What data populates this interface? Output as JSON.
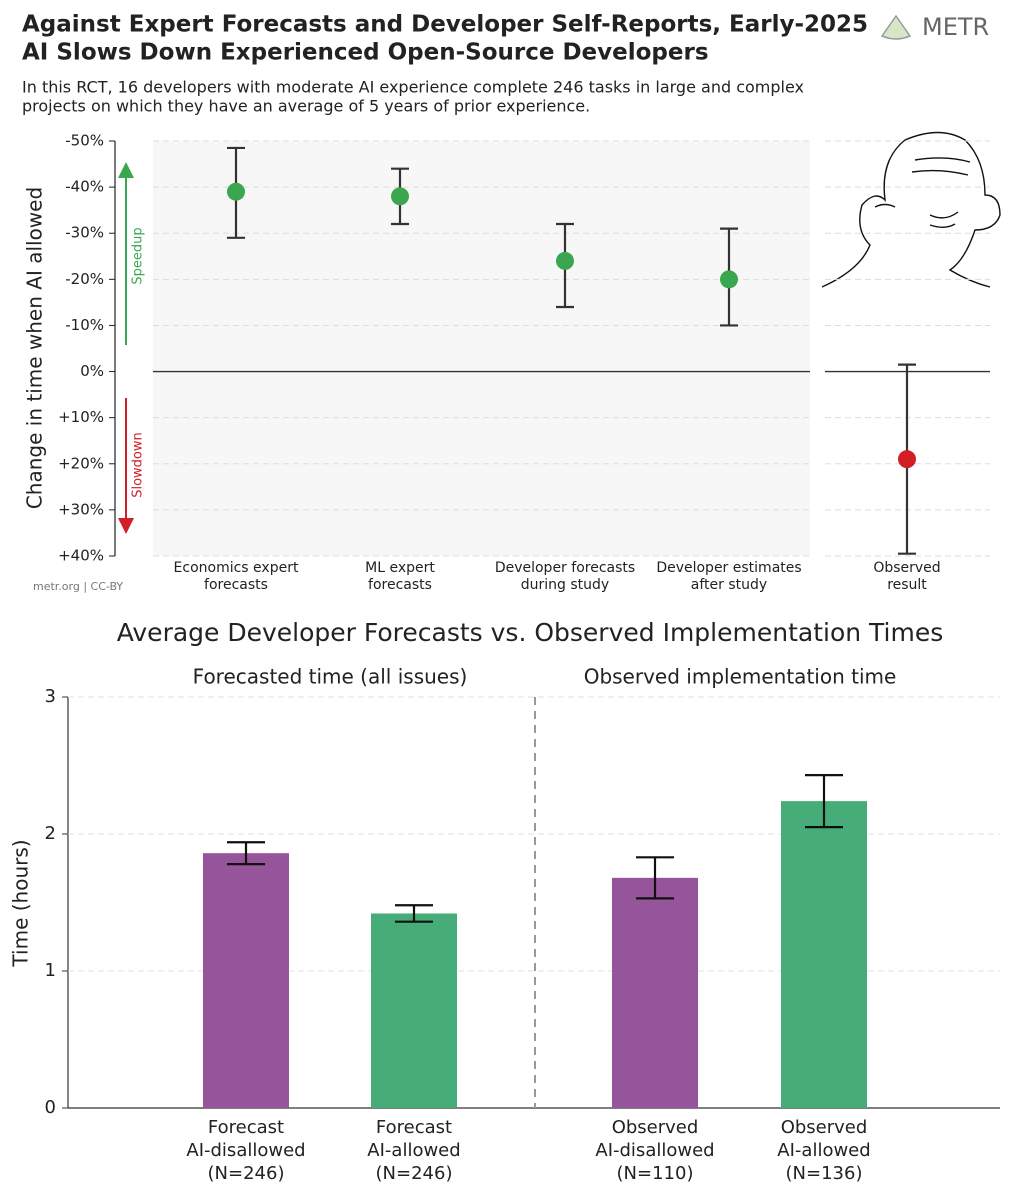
{
  "chart_data": [
    {
      "type": "errorbar",
      "title": [
        "Against Expert Forecasts and Developer Self-Reports, Early-2025",
        "AI Slows Down Experienced Open-Source Developers"
      ],
      "subtitle": [
        "In this RCT, 16 developers with moderate AI experience complete 246 tasks in large and complex",
        "projects on which they have an average of 5 years of prior experience."
      ],
      "logo": "METR",
      "footer": "metr.org  |  CC-BY",
      "y_label": "Change in time when AI allowed",
      "annotations": {
        "speedup": "Speedup",
        "slowdown": "Slowdown"
      },
      "categories": [
        [
          "Economics expert",
          "forecasts"
        ],
        [
          "ML expert",
          "forecasts"
        ],
        [
          "Developer forecasts",
          "during study"
        ],
        [
          "Developer estimates",
          "after study"
        ],
        [
          "Observed",
          "result"
        ]
      ],
      "values": [
        -39,
        -38,
        -24,
        -20,
        19
      ],
      "ci_low": [
        -48.5,
        -44,
        -32,
        -31,
        -1.5
      ],
      "ci_high": [
        -29,
        -32,
        -14,
        -10,
        39.5
      ],
      "colors": [
        "#3ba650",
        "#3ba650",
        "#3ba650",
        "#3ba650",
        "#d21f26"
      ],
      "ylim": [
        -50,
        40
      ],
      "y_inverted": true,
      "yticks": [
        {
          "value": -50,
          "label": "-50%"
        },
        {
          "value": -40,
          "label": "-40%"
        },
        {
          "value": -30,
          "label": "-30%"
        },
        {
          "value": -20,
          "label": "-20%"
        },
        {
          "value": -10,
          "label": "-10%"
        },
        {
          "value": 0,
          "label": "0%"
        },
        {
          "value": 10,
          "label": "+10%"
        },
        {
          "value": 20,
          "label": "+20%"
        },
        {
          "value": 30,
          "label": "+30%"
        },
        {
          "value": 40,
          "label": "+40%"
        }
      ],
      "grid": true
    },
    {
      "type": "bar",
      "title": "Average Developer Forecasts vs. Observed Implementation Times",
      "groups": [
        "Forecasted time (all issues)",
        "Observed implementation time"
      ],
      "y_label": "Time (hours)",
      "categories": [
        [
          "Forecast",
          "AI-disallowed",
          "(N=246)"
        ],
        [
          "Forecast",
          "AI-allowed",
          "(N=246)"
        ],
        [
          "Observed",
          "AI-disallowed",
          "(N=110)"
        ],
        [
          "Observed",
          "AI-allowed",
          "(N=136)"
        ]
      ],
      "values": [
        1.86,
        1.42,
        1.68,
        2.24
      ],
      "ci_low": [
        1.78,
        1.36,
        1.53,
        2.05
      ],
      "ci_high": [
        1.94,
        1.48,
        1.83,
        2.43
      ],
      "colors": [
        "#96559a",
        "#46ad78",
        "#96559a",
        "#46ad78"
      ],
      "ylim": [
        0,
        3
      ],
      "yticks": [
        0,
        1,
        2,
        3
      ],
      "grid": true
    }
  ]
}
